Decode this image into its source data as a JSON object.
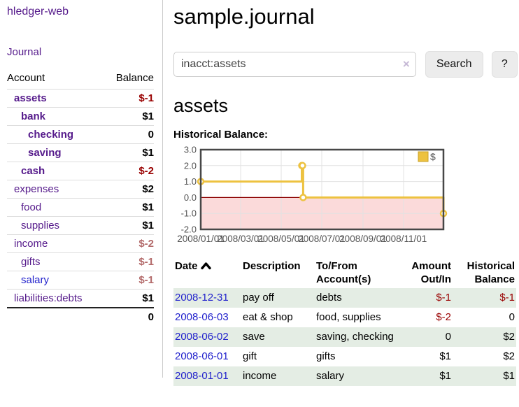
{
  "sidebar": {
    "brand": "hledger-web",
    "nav": {
      "journal": "Journal"
    },
    "table_header": {
      "account": "Account",
      "balance": "Balance"
    },
    "accounts": [
      {
        "name": "assets",
        "level": 0,
        "emphasis": true,
        "balance": "$-1",
        "negative": true
      },
      {
        "name": "bank",
        "level": 1,
        "emphasis": true,
        "balance": "$1",
        "negative": false
      },
      {
        "name": "checking",
        "level": 2,
        "emphasis": true,
        "balance": "0",
        "negative": false
      },
      {
        "name": "saving",
        "level": 2,
        "emphasis": true,
        "balance": "$1",
        "negative": false
      },
      {
        "name": "cash",
        "level": 1,
        "emphasis": true,
        "balance": "$-2",
        "negative": true
      },
      {
        "name": "expenses",
        "level": 0,
        "emphasis": false,
        "balance": "$2",
        "negative": false
      },
      {
        "name": "food",
        "level": 1,
        "emphasis": false,
        "balance": "$1",
        "negative": false
      },
      {
        "name": "supplies",
        "level": 1,
        "emphasis": false,
        "balance": "$1",
        "negative": false
      },
      {
        "name": "income",
        "level": 0,
        "emphasis": false,
        "balance": "$-2",
        "negative": true
      },
      {
        "name": "gifts",
        "level": 1,
        "emphasis": false,
        "balance": "$-1",
        "negative": true
      },
      {
        "name": "salary",
        "level": 1,
        "emphasis": false,
        "balance": "$-1",
        "negative": true,
        "link_style": "unvisited"
      },
      {
        "name": "liabilities:debts",
        "level": 0,
        "emphasis": false,
        "balance": "$1",
        "negative": false
      }
    ],
    "total": "0"
  },
  "main": {
    "title": "sample.journal",
    "search": {
      "value": "inacct:assets",
      "clear_icon": "×",
      "search_button": "Search",
      "help_button": "?"
    },
    "account_heading": "assets",
    "section_label": "Historical Balance:"
  },
  "chart_data": {
    "type": "line",
    "step": true,
    "title": "Historical Balance",
    "legend": [
      {
        "name": "$",
        "color": "#edc240"
      }
    ],
    "legend_position": "top-right",
    "series": [
      {
        "name": "$",
        "points": [
          [
            "2008-01-01",
            1
          ],
          [
            "2008-06-01",
            2
          ],
          [
            "2008-06-02",
            2
          ],
          [
            "2008-06-03",
            0
          ],
          [
            "2008-12-31",
            -1
          ]
        ]
      }
    ],
    "x_range": [
      "2008-01-01",
      "2008-12-31"
    ],
    "xticks": [
      {
        "date": "2008-01-01",
        "label": "2008/01/01"
      },
      {
        "date": "2008-03-01",
        "label": "2008/03/01"
      },
      {
        "date": "2008-05-01",
        "label": "2008/05/01"
      },
      {
        "date": "2008-07-01",
        "label": "2008/07/01"
      },
      {
        "date": "2008-09-01",
        "label": "2008/09/01"
      },
      {
        "date": "2008-11-01",
        "label": "2008/11/01"
      }
    ],
    "ylim": [
      -2,
      3
    ],
    "yticks": [
      3,
      2,
      1,
      0,
      -1,
      -2
    ],
    "grid": true,
    "negative_region_fill": true
  },
  "register": {
    "columns": [
      [
        "Date",
        ""
      ],
      [
        "Description",
        ""
      ],
      [
        "To/From",
        "Account(s)"
      ],
      [
        "Amount",
        "Out/In"
      ],
      [
        "Historical",
        "Balance"
      ]
    ],
    "sort_icon": "chevron-up",
    "rows": [
      {
        "date": "2008-12-31",
        "description": "pay off",
        "accounts": "debts",
        "amount": "$-1",
        "amount_negative": true,
        "balance": "$-1",
        "balance_negative": true
      },
      {
        "date": "2008-06-03",
        "description": "eat & shop",
        "accounts": "food, supplies",
        "amount": "$-2",
        "amount_negative": true,
        "balance": "0",
        "balance_negative": false
      },
      {
        "date": "2008-06-02",
        "description": "save",
        "accounts": "saving, checking",
        "amount": "0",
        "amount_negative": false,
        "balance": "$2",
        "balance_negative": false
      },
      {
        "date": "2008-06-01",
        "description": "gift",
        "accounts": "gifts",
        "amount": "$1",
        "amount_negative": false,
        "balance": "$2",
        "balance_negative": false
      },
      {
        "date": "2008-01-01",
        "description": "income",
        "accounts": "salary",
        "amount": "$1",
        "amount_negative": false,
        "balance": "$1",
        "balance_negative": false
      }
    ]
  },
  "colors": {
    "link_purple": "#551a8b",
    "link_blue": "#2222cc",
    "negative_strong": "#990000",
    "negative_muted": "#b36a6a",
    "row_stripe": "#e4ede4",
    "series_gold": "#edc240",
    "chart_negative_fill": "#fbdada",
    "zero_line": "#8b0000",
    "chart_border": "#474747",
    "grid": "#e2e2e2",
    "axis_text": "#545454"
  }
}
